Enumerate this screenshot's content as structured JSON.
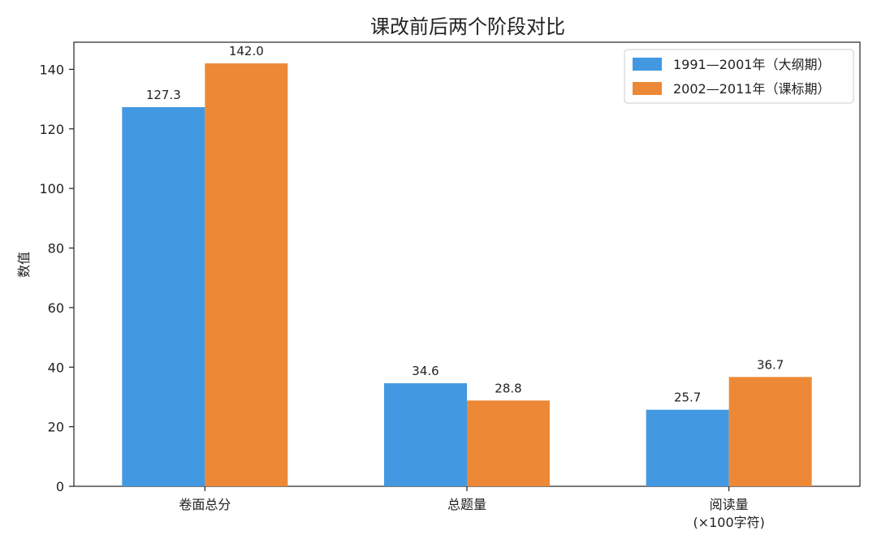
{
  "chart_data": {
    "type": "bar",
    "title": "课改前后两个阶段对比",
    "xlabel": "",
    "ylabel": "数值",
    "categories": [
      "卷面总分",
      "总题量",
      "阅读量\n(×100字符)"
    ],
    "series": [
      {
        "name": "1991—2001年（大纲期）",
        "values": [
          127.3,
          34.6,
          25.7
        ],
        "color": "#4299e1"
      },
      {
        "name": "2002—2011年（课标期）",
        "values": [
          142.0,
          28.8,
          36.7
        ],
        "color": "#ed8936"
      }
    ],
    "data_labels": [
      [
        "127.3",
        "34.6",
        "25.7"
      ],
      [
        "142.0",
        "28.8",
        "36.7"
      ]
    ],
    "ylim": [
      0,
      149.1
    ],
    "yticks": [
      0,
      20,
      40,
      60,
      80,
      100,
      120,
      140
    ],
    "grid": false,
    "legend_position": "top-right"
  }
}
